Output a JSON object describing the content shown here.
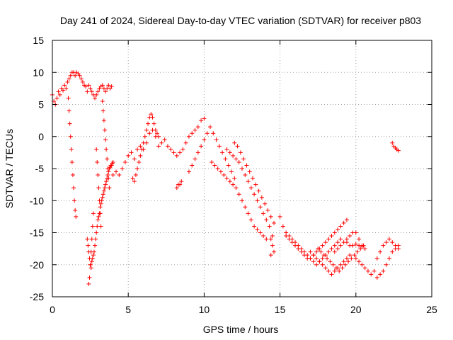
{
  "chart_data": {
    "type": "scatter",
    "title": "Day 241 of 2024, Sidereal Day-to-day VTEC variation (SDTVAR) for receiver p803",
    "xlabel": "GPS time / hours",
    "ylabel": "SDTVAR / TECUs",
    "xlim": [
      0,
      25
    ],
    "ylim": [
      -25,
      15
    ],
    "xticks": [
      0,
      5,
      10,
      15,
      20,
      25
    ],
    "yticks": [
      -25,
      -20,
      -15,
      -10,
      -5,
      0,
      5,
      10,
      15
    ],
    "xtick_labels": [
      "0",
      "5",
      "10",
      "15",
      "20",
      "25"
    ],
    "ytick_labels": [
      "-25",
      "-20",
      "-15",
      "-10",
      "-5",
      "0",
      "5",
      "10",
      "15"
    ],
    "grid": true,
    "marker": "+",
    "series_color": "#ff0000",
    "series": [
      {
        "name": "p803",
        "x": [
          0.0,
          0.1,
          0.2,
          0.3,
          0.4,
          0.5,
          0.6,
          0.7,
          0.8,
          0.9,
          1.0,
          1.1,
          1.2,
          1.3,
          1.4,
          1.5,
          1.6,
          1.7,
          1.8,
          1.9,
          2.0,
          2.1,
          2.2,
          2.3,
          2.4,
          2.5,
          2.6,
          2.7,
          2.8,
          2.9,
          3.0,
          3.1,
          3.2,
          3.3,
          3.4,
          3.5,
          3.6,
          3.7,
          3.8,
          3.9,
          1.05,
          1.1,
          1.15,
          1.2,
          1.25,
          1.3,
          1.35,
          1.4,
          1.45,
          1.5,
          1.55,
          2.3,
          2.35,
          2.4,
          2.45,
          2.5,
          2.55,
          2.6,
          2.65,
          2.7,
          2.75,
          2.8,
          2.85,
          2.9,
          2.95,
          3.0,
          3.05,
          3.1,
          3.15,
          3.2,
          3.25,
          3.3,
          3.35,
          3.4,
          3.45,
          3.5,
          3.55,
          3.6,
          3.65,
          3.7,
          3.75,
          3.8,
          3.85,
          3.9,
          3.95,
          4.0,
          2.4,
          2.45,
          2.5,
          2.55,
          2.6,
          2.65,
          2.7,
          2.9,
          2.95,
          3.0,
          3.05,
          3.1,
          3.15,
          3.2,
          3.3,
          3.35,
          3.4,
          3.45,
          3.5,
          3.55,
          3.6,
          3.65,
          3.7,
          3.75,
          4.0,
          4.2,
          4.4,
          4.6,
          4.8,
          5.0,
          5.2,
          5.4,
          5.6,
          5.8,
          6.0,
          6.2,
          6.4,
          6.6,
          6.8,
          7.0,
          7.2,
          7.4,
          7.6,
          7.8,
          8.0,
          8.2,
          8.4,
          8.6,
          8.8,
          9.0,
          9.2,
          9.4,
          9.6,
          9.8,
          10.0,
          5.3,
          5.4,
          5.5,
          5.6,
          5.7,
          5.8,
          5.9,
          6.0,
          6.1,
          6.2,
          6.3,
          6.4,
          6.5,
          6.6,
          6.7,
          6.8,
          6.9,
          7.0,
          8.2,
          8.3,
          8.4,
          8.5,
          9.0,
          9.2,
          9.4,
          9.6,
          9.8,
          10.0,
          10.2,
          10.4,
          10.6,
          10.8,
          11.0,
          11.2,
          11.4,
          11.6,
          11.8,
          12.0,
          10.5,
          10.7,
          10.9,
          11.1,
          11.3,
          11.5,
          11.7,
          11.9,
          12.1,
          12.3,
          12.5,
          12.7,
          12.9,
          13.1,
          13.3,
          13.5,
          13.7,
          13.9,
          14.1,
          11.5,
          11.7,
          11.9,
          12.1,
          12.3,
          12.5,
          12.7,
          12.9,
          13.1,
          13.3,
          13.5,
          13.7,
          13.9,
          14.1,
          14.3,
          12.0,
          12.2,
          12.4,
          12.6,
          12.8,
          13.0,
          13.2,
          13.4,
          13.6,
          13.8,
          14.0,
          14.2,
          14.4,
          14.6,
          14.4,
          14.5,
          14.6,
          14.4,
          14.5,
          15.0,
          15.2,
          15.4,
          15.6,
          15.8,
          16.0,
          16.2,
          16.4,
          16.6,
          16.8,
          17.0,
          17.2,
          17.4,
          17.6,
          17.8,
          18.0,
          18.2,
          18.4,
          18.6,
          18.8,
          19.0,
          19.2,
          19.4,
          15.4,
          15.6,
          15.8,
          16.0,
          16.2,
          16.4,
          16.6,
          16.8,
          17.0,
          17.2,
          17.4,
          17.6,
          17.8,
          18.0,
          18.2,
          18.4,
          18.6,
          18.8,
          19.0,
          17.0,
          17.2,
          17.4,
          17.6,
          17.8,
          18.0,
          18.2,
          18.4,
          18.6,
          18.8,
          19.0,
          19.2,
          19.4,
          19.6,
          17.5,
          17.7,
          17.9,
          18.1,
          18.3,
          18.5,
          18.7,
          18.9,
          19.1,
          19.3,
          19.5,
          19.7,
          19.9,
          20.1,
          20.3,
          20.5,
          18.6,
          18.8,
          19.0,
          19.2,
          19.4,
          19.6,
          19.8,
          20.0,
          20.2,
          20.4,
          20.6,
          19.4,
          19.6,
          19.8,
          20.0,
          20.2,
          20.4,
          20.0,
          20.2,
          20.4,
          20.6,
          20.8,
          21.0,
          21.2,
          21.4,
          21.6,
          21.8,
          22.0,
          22.2,
          22.4,
          22.6,
          22.8,
          21.4,
          21.6,
          21.8,
          22.0,
          22.2,
          22.4,
          22.6,
          22.8,
          22.4,
          22.5,
          22.6,
          22.7,
          22.8
        ],
        "y": [
          6.5,
          5.5,
          5.0,
          6.0,
          7.0,
          6.5,
          7.5,
          7.2,
          8.0,
          7.5,
          8.5,
          9.0,
          9.5,
          10.0,
          10.0,
          9.5,
          10.0,
          9.8,
          9.5,
          9.0,
          8.5,
          8.0,
          7.8,
          7.0,
          8.0,
          7.5,
          7.0,
          6.5,
          6.0,
          6.5,
          7.0,
          7.5,
          7.8,
          8.0,
          7.5,
          7.0,
          7.5,
          8.0,
          7.5,
          7.8,
          6.0,
          4.0,
          2.0,
          0.0,
          -2.0,
          -4.0,
          -6.0,
          -8.0,
          -10.0,
          -11.5,
          -12.5,
          -16.0,
          -17.0,
          -18.0,
          -19.0,
          -20.0,
          -20.5,
          -19.5,
          -19.0,
          -18.5,
          -18.0,
          -17.0,
          -16.0,
          -15.0,
          -14.0,
          -13.0,
          -12.5,
          -12.0,
          -11.0,
          -10.5,
          -10.0,
          -9.5,
          -9.0,
          -8.5,
          -8.0,
          -7.5,
          -7.0,
          -6.5,
          -6.0,
          -5.5,
          -5.0,
          -4.8,
          -4.5,
          -4.5,
          -4.2,
          -4.0,
          -23.0,
          -22.0,
          -20.0,
          -18.0,
          -16.0,
          -14.0,
          -12.0,
          -2.0,
          -4.0,
          -6.0,
          -8.0,
          -10.0,
          -12.0,
          -14.0,
          5.5,
          4.0,
          2.5,
          1.0,
          -0.5,
          -2.0,
          -3.5,
          -5.0,
          -6.5,
          -8.0,
          -6.0,
          -5.5,
          -6.0,
          -5.0,
          -4.0,
          -3.0,
          -2.5,
          -3.5,
          -2.0,
          -1.5,
          -2.0,
          -1.0,
          0.5,
          1.0,
          0.0,
          -1.5,
          -1.0,
          -0.5,
          -1.5,
          -2.0,
          -2.5,
          -3.0,
          -2.5,
          -2.0,
          -1.0,
          0.0,
          0.5,
          1.0,
          1.5,
          2.5,
          2.8,
          -6.5,
          -7.0,
          -6.0,
          -5.0,
          -4.0,
          -3.0,
          -2.0,
          -1.0,
          0.0,
          1.0,
          2.0,
          3.0,
          3.5,
          3.0,
          2.0,
          1.0,
          0.5,
          0.0,
          -8.0,
          -7.5,
          -7.5,
          -7.0,
          -5.5,
          -4.5,
          -3.5,
          -2.5,
          -1.5,
          -0.5,
          0.5,
          1.5,
          0.5,
          -0.5,
          -1.5,
          -2.5,
          -3.5,
          -4.5,
          -5.5,
          -6.5,
          -4.0,
          -4.5,
          -5.0,
          -5.5,
          -6.0,
          -6.5,
          -7.0,
          -7.5,
          -8.0,
          -9.0,
          -10.0,
          -11.0,
          -12.0,
          -13.0,
          -14.0,
          -14.5,
          -15.0,
          -15.5,
          -16.0,
          -2.0,
          -2.5,
          -3.0,
          -3.5,
          -4.0,
          -5.0,
          -6.0,
          -7.0,
          -8.0,
          -9.0,
          -10.0,
          -11.0,
          -12.0,
          -13.0,
          -14.0,
          -1.0,
          -1.5,
          -2.5,
          -3.5,
          -4.5,
          -5.5,
          -6.5,
          -7.5,
          -8.5,
          -9.5,
          -10.5,
          -11.5,
          -12.5,
          -13.5,
          -16.0,
          -17.0,
          -18.0,
          -18.5,
          -15.5,
          -12.5,
          -14.0,
          -15.5,
          -16.0,
          -16.5,
          -17.0,
          -17.5,
          -18.0,
          -18.5,
          -19.0,
          -19.0,
          -18.5,
          -18.0,
          -17.5,
          -17.0,
          -16.5,
          -16.0,
          -15.5,
          -15.0,
          -14.5,
          -14.0,
          -13.5,
          -13.0,
          -15.0,
          -15.5,
          -16.0,
          -16.5,
          -17.0,
          -17.5,
          -18.0,
          -18.5,
          -19.0,
          -19.5,
          -20.0,
          -19.5,
          -19.0,
          -18.5,
          -18.0,
          -17.5,
          -17.0,
          -16.5,
          -16.0,
          -18.0,
          -18.5,
          -19.0,
          -19.5,
          -20.0,
          -20.5,
          -21.0,
          -21.5,
          -21.0,
          -20.5,
          -20.0,
          -19.5,
          -19.0,
          -18.5,
          -17.5,
          -18.0,
          -18.5,
          -19.0,
          -19.5,
          -20.0,
          -20.5,
          -21.0,
          -20.5,
          -20.0,
          -19.5,
          -19.0,
          -18.5,
          -18.0,
          -17.5,
          -17.0,
          -18.0,
          -17.5,
          -17.0,
          -16.5,
          -16.0,
          -15.5,
          -15.0,
          -15.0,
          -16.0,
          -17.0,
          -17.5,
          -16.5,
          -17.0,
          -17.0,
          -16.8,
          -17.0,
          -17.2,
          -19.0,
          -19.5,
          -20.0,
          -20.5,
          -21.0,
          -21.5,
          -21.0,
          -19.0,
          -18.0,
          -17.0,
          -16.5,
          -16.0,
          -16.5,
          -17.0,
          -17.5,
          -22.0,
          -21.5,
          -21.0,
          -20.0,
          -19.0,
          -18.0,
          -17.5,
          -17.0,
          -1.0,
          -1.5,
          -1.8,
          -2.0,
          -2.2
        ]
      }
    ]
  }
}
